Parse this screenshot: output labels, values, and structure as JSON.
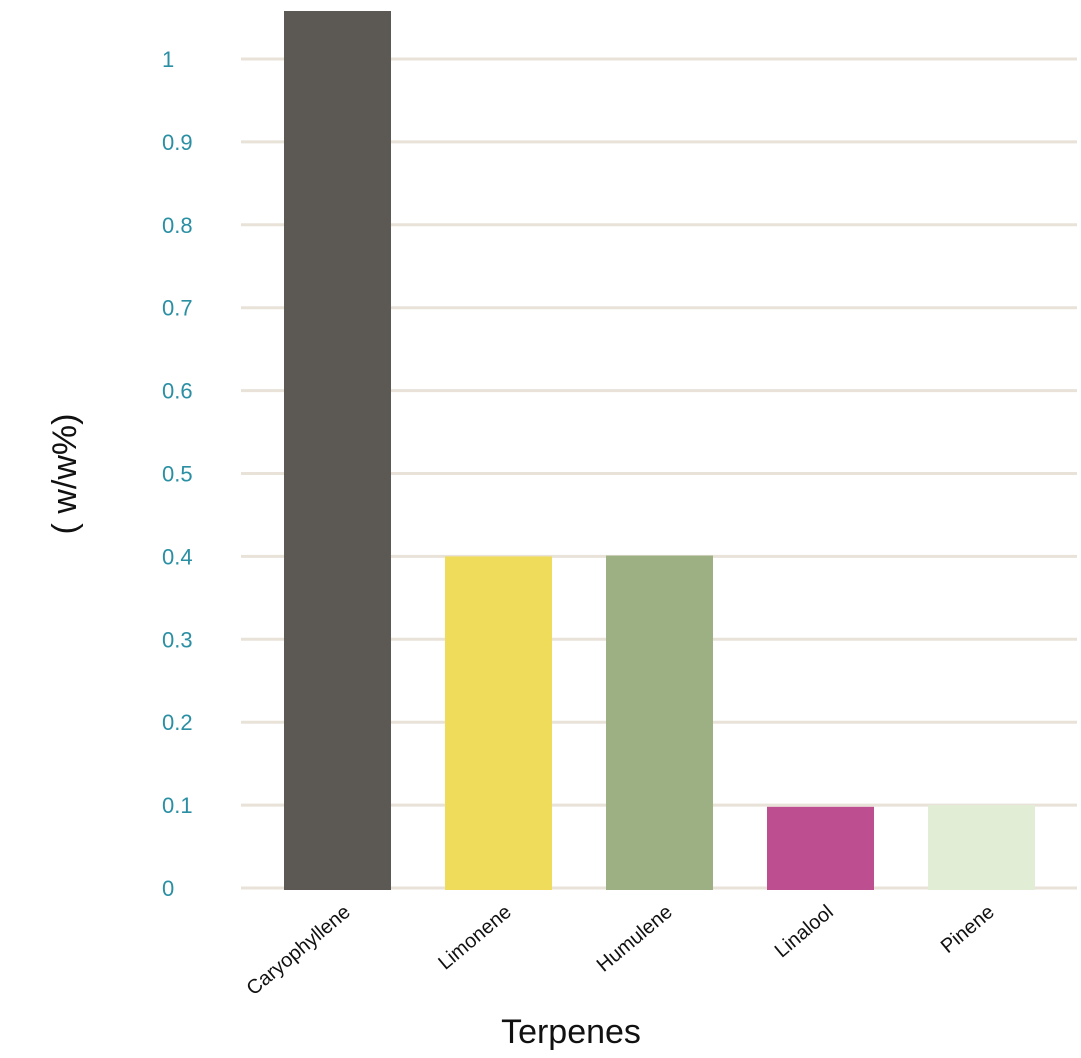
{
  "chart_data": {
    "type": "bar",
    "title": "",
    "xlabel": "Terpenes",
    "ylabel": "( w/w%)",
    "categories": [
      "Caryophyllene",
      "Limonene",
      "Humulene",
      "Linalool",
      "Pinene"
    ],
    "values": [
      1.06,
      0.4,
      0.401,
      0.098,
      0.1
    ],
    "colors": [
      "#5c5854",
      "#efdc5a",
      "#9db084",
      "#bd4e8f",
      "#e2edd6"
    ],
    "ylim": [
      0,
      1.06
    ],
    "yticks": [
      0,
      0.1,
      0.2,
      0.3,
      0.4,
      0.5,
      0.6,
      0.7,
      0.8,
      0.9,
      1
    ],
    "ytick_labels": [
      "0",
      "0.1",
      "0.2",
      "0.3",
      "0.4",
      "0.5",
      "0.6",
      "0.7",
      "0.8",
      "0.9",
      "1"
    ],
    "grid": true,
    "legend": "none"
  }
}
